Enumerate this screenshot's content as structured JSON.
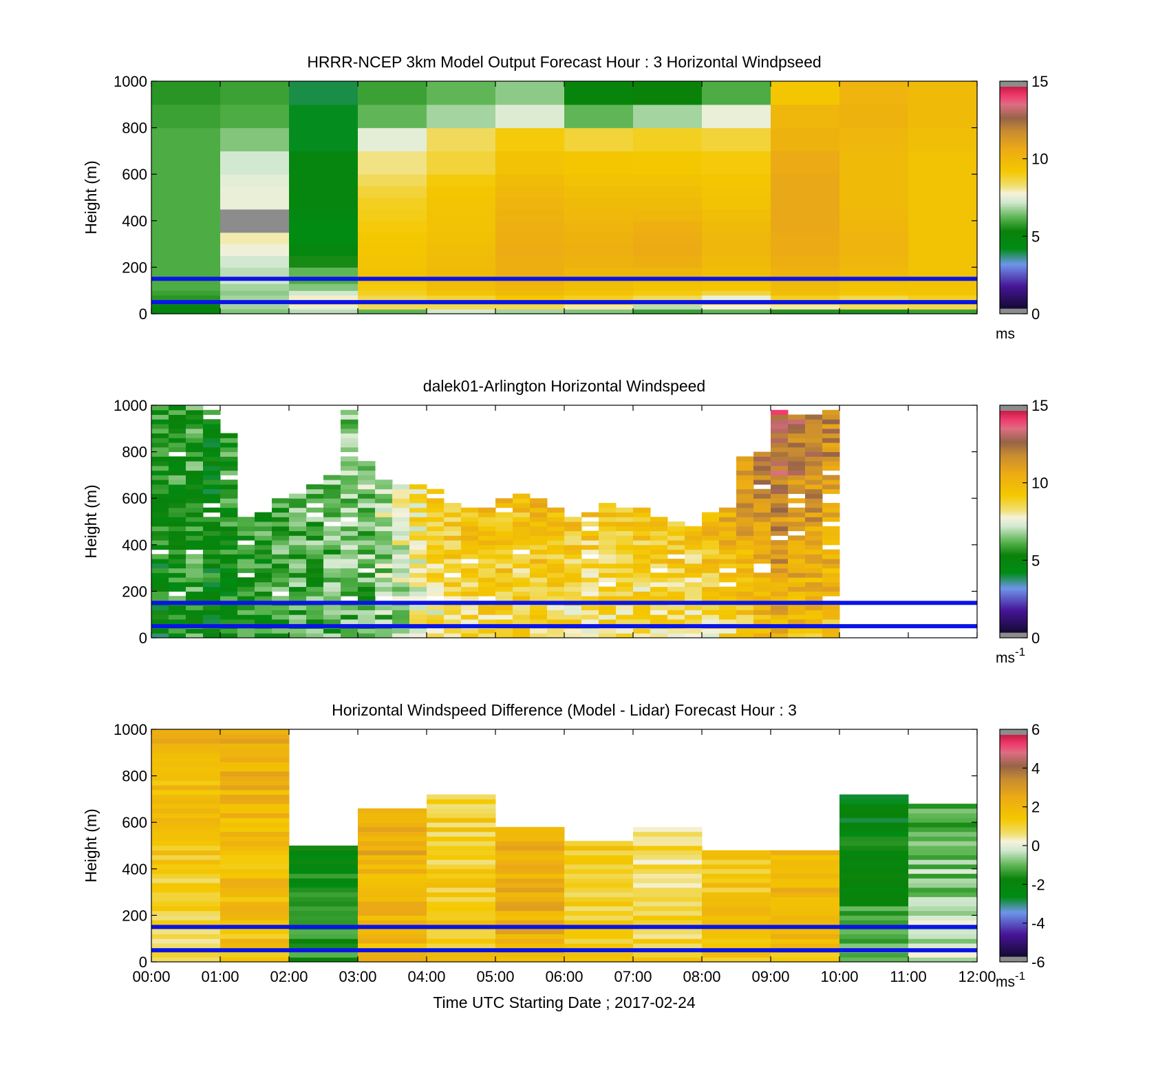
{
  "x_axis": {
    "ticks": [
      "00:00",
      "01:00",
      "02:00",
      "03:00",
      "04:00",
      "05:00",
      "06:00",
      "07:00",
      "08:00",
      "09:00",
      "10:00",
      "11:00",
      "12:00"
    ],
    "label": "Time UTC  Starting Date ; 2017-02-24"
  },
  "reference_lines_m": [
    150,
    50
  ],
  "colors": {
    "reference_line": "#0a14e6",
    "missing": "#ffffff",
    "out_of_range": "#8c8c8c"
  },
  "chart_data": [
    {
      "type": "heatmap",
      "title": "HRRR-NCEP 3km Model Output   Forecast Hour : 3 Horizontal Windpseed",
      "ylabel": "Height (m)",
      "ylim": [
        0,
        1000
      ],
      "yticks": [
        "0",
        "200",
        "400",
        "600",
        "800",
        "1000"
      ],
      "colorbar": {
        "min": 0,
        "max": 15,
        "ticks": [
          "0",
          "5",
          "10",
          "15"
        ],
        "unit": "ms"
      },
      "x_hours": [
        0,
        1,
        2,
        3,
        4,
        5,
        6,
        7,
        8,
        9,
        10,
        11,
        12
      ],
      "height_levels_m": [
        0,
        20,
        40,
        60,
        80,
        100,
        130,
        160,
        200,
        250,
        300,
        350,
        400,
        450,
        500,
        550,
        600,
        700,
        800,
        900,
        1000
      ],
      "values_ms": [
        [
          4.8,
          6.5,
          7.0,
          6.2,
          7.2,
          6.8,
          6.5,
          5.8,
          6.2,
          5.6,
          5.5,
          5.8
        ],
        [
          5.0,
          6.8,
          7.6,
          8.5,
          8.5,
          8.5,
          8.0,
          7.0,
          7.8,
          8.0,
          8.4,
          8.6
        ],
        [
          5.4,
          7.0,
          8.6,
          9.0,
          9.2,
          9.6,
          9.4,
          8.8,
          9.0,
          9.4,
          9.5,
          9.2
        ],
        [
          5.6,
          6.8,
          7.9,
          8.6,
          8.8,
          9.3,
          9.0,
          8.5,
          7.6,
          9.0,
          8.6,
          9.0
        ],
        [
          5.8,
          6.6,
          7.2,
          9.0,
          9.5,
          10.0,
          9.6,
          9.2,
          8.8,
          9.8,
          9.4,
          9.5
        ],
        [
          6.0,
          6.8,
          6.5,
          9.2,
          9.8,
          10.2,
          9.8,
          9.5,
          9.4,
          10.0,
          9.6,
          9.6
        ],
        [
          6.0,
          7.2,
          6.0,
          9.4,
          10.0,
          10.5,
          10.0,
          9.8,
          9.6,
          10.2,
          9.8,
          9.6
        ],
        [
          6.0,
          7.0,
          6.2,
          9.6,
          10.0,
          10.6,
          10.2,
          10.2,
          9.8,
          10.4,
          10.0,
          9.6
        ],
        [
          6.0,
          7.2,
          5.4,
          9.5,
          9.9,
          10.6,
          10.4,
          10.6,
          10.0,
          10.6,
          10.2,
          9.6
        ],
        [
          6.0,
          7.7,
          4.6,
          9.4,
          9.8,
          10.7,
          10.5,
          10.8,
          10.2,
          10.8,
          10.3,
          9.6
        ],
        [
          6.0,
          8.0,
          4.2,
          9.3,
          9.7,
          10.6,
          10.4,
          10.7,
          10.2,
          10.8,
          10.3,
          9.6
        ],
        [
          6.0,
          0.0,
          4.2,
          9.2,
          9.6,
          10.5,
          10.3,
          10.5,
          10.0,
          10.9,
          10.2,
          9.6
        ],
        [
          6.0,
          0.0,
          4.4,
          9.1,
          9.6,
          10.4,
          10.1,
          10.2,
          9.8,
          10.9,
          10.1,
          9.6
        ],
        [
          6.0,
          7.6,
          4.6,
          9.0,
          9.5,
          10.3,
          10.0,
          10.0,
          9.6,
          10.9,
          10.0,
          9.6
        ],
        [
          6.0,
          7.6,
          4.8,
          8.8,
          9.4,
          10.1,
          9.8,
          9.8,
          9.5,
          10.9,
          10.0,
          9.6
        ],
        [
          6.0,
          7.5,
          4.8,
          8.5,
          9.2,
          9.9,
          9.6,
          9.6,
          9.4,
          10.9,
          10.0,
          9.6
        ],
        [
          6.0,
          7.2,
          4.8,
          8.2,
          8.8,
          9.6,
          9.4,
          9.3,
          9.2,
          10.8,
          10.0,
          9.6
        ],
        [
          6.0,
          6.5,
          4.0,
          7.5,
          8.5,
          9.2,
          8.8,
          9.0,
          8.8,
          10.4,
          10.2,
          9.8
        ],
        [
          5.8,
          6.0,
          4.0,
          6.2,
          6.8,
          7.4,
          6.2,
          6.8,
          7.6,
          10.2,
          10.4,
          10.0
        ],
        [
          5.6,
          5.8,
          3.8,
          5.8,
          6.2,
          6.6,
          5.0,
          5.2,
          6.0,
          9.4,
          10.3,
          10.0
        ]
      ]
    },
    {
      "type": "heatmap",
      "title": "dalek01-Arlington  Horizontal Windspeed",
      "ylabel": "Height (m)",
      "ylim": [
        0,
        1000
      ],
      "yticks": [
        "0",
        "200",
        "400",
        "600",
        "800",
        "1000"
      ],
      "colorbar": {
        "min": 0,
        "max": 15,
        "ticks": [
          "0",
          "5",
          "10",
          "15"
        ],
        "unit": "ms-1"
      },
      "x_step_minutes": 15,
      "height_step_m": 20,
      "column_tops_m": [
        1000,
        1000,
        1000,
        1000,
        880,
        520,
        540,
        600,
        620,
        650,
        700,
        980,
        760,
        680,
        650,
        660,
        640,
        580,
        560,
        560,
        600,
        620,
        600,
        560,
        520,
        540,
        580,
        560,
        560,
        520,
        500,
        480,
        540,
        560,
        780,
        800,
        980,
        950,
        960,
        970
      ],
      "column_mean_ms": [
        5.0,
        5.3,
        5.6,
        4.9,
        5.2,
        5.3,
        5.4,
        5.8,
        6.0,
        5.9,
        6.1,
        6.2,
        6.4,
        6.8,
        7.5,
        8.1,
        8.7,
        9.0,
        9.2,
        9.3,
        9.4,
        9.3,
        9.4,
        9.3,
        9.2,
        9.0,
        9.1,
        9.1,
        9.0,
        9.2,
        9.3,
        9.2,
        9.6,
        10.0,
        10.4,
        11.0,
        11.4,
        11.0,
        10.8,
        10.6
      ],
      "column_shear_ms": [
        0.8,
        0.6,
        0.4,
        0.2,
        0.4,
        0.5,
        0.5,
        0.6,
        0.7,
        0.6,
        0.7,
        0.8,
        0.8,
        1.0,
        1.3,
        1.6,
        1.8,
        2.0,
        2.0,
        2.2,
        2.2,
        2.3,
        2.2,
        2.4,
        2.4,
        2.5,
        2.4,
        2.3,
        2.4,
        2.6,
        2.8,
        3.0,
        3.4,
        3.6,
        3.8,
        3.6,
        3.4,
        3.2,
        3.0,
        2.8
      ]
    },
    {
      "type": "heatmap",
      "title": "Horizontal Windspeed Difference (Model - Lidar) Forecast Hour : 3",
      "ylabel": "Height (m)",
      "ylim": [
        0,
        1000
      ],
      "yticks": [
        "0",
        "200",
        "400",
        "600",
        "800",
        "1000"
      ],
      "colorbar": {
        "min": -6,
        "max": 6,
        "ticks": [
          "-6",
          "-4",
          "-2",
          "0",
          "2",
          "4",
          "6"
        ],
        "unit": "ms-1"
      },
      "x_hours": [
        0,
        1,
        2,
        3,
        4,
        5,
        6,
        7,
        8,
        9,
        10,
        11,
        12
      ],
      "height_step_m": 20,
      "column_tops_m": [
        1000,
        1000,
        500,
        660,
        710,
        570,
        520,
        570,
        480,
        480,
        720,
        680
      ],
      "column_mean_diff_ms": [
        1.1,
        1.8,
        -1.8,
        2.2,
        1.4,
        2.4,
        1.2,
        1.0,
        1.6,
        2.0,
        -1.6,
        -0.6
      ],
      "column_trend_ms": [
        0.8,
        0.4,
        -1.0,
        0.4,
        -0.4,
        0.2,
        0.0,
        -0.4,
        0.0,
        0.6,
        -1.0,
        -0.8
      ]
    }
  ]
}
